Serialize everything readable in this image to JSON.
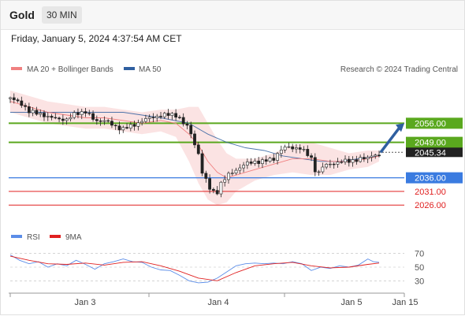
{
  "header": {
    "symbol": "Gold",
    "timeframe": "30 MIN"
  },
  "timestamp": "Friday, January 5, 2024 4:37:54 AM CET",
  "legend": {
    "ma20": {
      "label": "MA 20 + Bollinger Bands",
      "color": "#f08080"
    },
    "ma50": {
      "label": "MA 50",
      "color": "#2f5fa0"
    },
    "credit": "Research © 2024 Trading Central"
  },
  "rsi_legend": {
    "rsi": {
      "label": "RSI",
      "color": "#5b8de8"
    },
    "ma9": {
      "label": "9MA",
      "color": "#e02020"
    }
  },
  "chart_data": [
    {
      "type": "candlestick",
      "title": "Gold",
      "x_ticks": [
        "Jan 3",
        "Jan 4",
        "Jan 5",
        "Jan 15"
      ],
      "ylim": [
        2020,
        2072
      ],
      "last_price": 2045.34,
      "levels": [
        {
          "value": 2056.0,
          "label": "2056.00",
          "color": "#5aa81e",
          "kind": "resistance"
        },
        {
          "value": 2049.0,
          "label": "2049.00",
          "color": "#5aa81e",
          "kind": "resistance"
        },
        {
          "value": 2036.0,
          "label": "2036.00",
          "color": "#3a7be0",
          "kind": "pivot"
        },
        {
          "value": 2031.0,
          "label": "2031.00",
          "color": "#e02020",
          "kind": "support"
        },
        {
          "value": 2026.0,
          "label": "2026.00",
          "color": "#e02020",
          "kind": "support"
        }
      ],
      "last_price_label": "2045.34",
      "forecast": {
        "direction": "up",
        "target": 2056.0
      },
      "price_path": [
        [
          0,
          2065
        ],
        [
          5,
          2064
        ],
        [
          10,
          2060
        ],
        [
          15,
          2060
        ],
        [
          20,
          2058
        ],
        [
          25,
          2058
        ],
        [
          30,
          2057
        ],
        [
          35,
          2060
        ],
        [
          40,
          2060
        ],
        [
          45,
          2057
        ],
        [
          50,
          2057
        ],
        [
          55,
          2055
        ],
        [
          60,
          2054
        ],
        [
          65,
          2055
        ],
        [
          70,
          2057
        ],
        [
          75,
          2058
        ],
        [
          80,
          2059
        ],
        [
          85,
          2059
        ],
        [
          88,
          2059
        ],
        [
          90,
          2058
        ],
        [
          92,
          2056
        ],
        [
          95,
          2054
        ],
        [
          97,
          2050
        ],
        [
          100,
          2045
        ],
        [
          102,
          2038
        ],
        [
          104,
          2035
        ],
        [
          106,
          2032
        ],
        [
          108,
          2031
        ],
        [
          110,
          2031
        ],
        [
          112,
          2034
        ],
        [
          116,
          2037
        ],
        [
          120,
          2039
        ],
        [
          125,
          2041
        ],
        [
          130,
          2042
        ],
        [
          135,
          2042
        ],
        [
          140,
          2043
        ],
        [
          143,
          2046
        ],
        [
          146,
          2047
        ],
        [
          150,
          2047
        ],
        [
          154,
          2047
        ],
        [
          157,
          2045
        ],
        [
          160,
          2043
        ],
        [
          163,
          2037
        ],
        [
          166,
          2040
        ],
        [
          170,
          2041
        ],
        [
          175,
          2042
        ],
        [
          180,
          2042
        ],
        [
          185,
          2043
        ],
        [
          190,
          2043
        ],
        [
          193,
          2045
        ],
        [
          196,
          2044
        ]
      ],
      "ma20_path": [
        [
          0,
          2064
        ],
        [
          10,
          2062
        ],
        [
          20,
          2060
        ],
        [
          30,
          2059
        ],
        [
          40,
          2058
        ],
        [
          50,
          2058
        ],
        [
          60,
          2057
        ],
        [
          70,
          2056
        ],
        [
          80,
          2057
        ],
        [
          88,
          2056
        ],
        [
          95,
          2052
        ],
        [
          100,
          2048
        ],
        [
          105,
          2042
        ],
        [
          110,
          2038
        ],
        [
          115,
          2036
        ],
        [
          120,
          2037
        ],
        [
          130,
          2039
        ],
        [
          140,
          2041
        ],
        [
          150,
          2043
        ],
        [
          160,
          2043
        ],
        [
          170,
          2042
        ],
        [
          180,
          2042
        ],
        [
          190,
          2043
        ],
        [
          196,
          2044
        ]
      ],
      "ma50_path": [
        [
          0,
          2060
        ],
        [
          20,
          2060
        ],
        [
          40,
          2060
        ],
        [
          60,
          2060
        ],
        [
          80,
          2058
        ],
        [
          95,
          2056
        ],
        [
          105,
          2052
        ],
        [
          115,
          2049
        ],
        [
          125,
          2047
        ],
        [
          135,
          2046
        ],
        [
          145,
          2044
        ],
        [
          155,
          2043
        ],
        [
          165,
          2042
        ],
        [
          175,
          2042
        ],
        [
          185,
          2043
        ],
        [
          196,
          2044
        ]
      ],
      "bollinger_upper": [
        [
          0,
          2068
        ],
        [
          10,
          2066
        ],
        [
          20,
          2064
        ],
        [
          30,
          2063
        ],
        [
          40,
          2062
        ],
        [
          50,
          2062
        ],
        [
          60,
          2061
        ],
        [
          70,
          2060
        ],
        [
          80,
          2061
        ],
        [
          88,
          2061
        ],
        [
          95,
          2062
        ],
        [
          100,
          2062
        ],
        [
          105,
          2056
        ],
        [
          110,
          2050
        ],
        [
          115,
          2045
        ],
        [
          120,
          2043
        ],
        [
          130,
          2043
        ],
        [
          140,
          2045
        ],
        [
          150,
          2048
        ],
        [
          160,
          2049
        ],
        [
          170,
          2047
        ],
        [
          180,
          2045
        ],
        [
          190,
          2046
        ],
        [
          196,
          2046
        ]
      ],
      "bollinger_lower": [
        [
          0,
          2060
        ],
        [
          10,
          2058
        ],
        [
          20,
          2056
        ],
        [
          30,
          2055
        ],
        [
          40,
          2054
        ],
        [
          50,
          2054
        ],
        [
          60,
          2053
        ],
        [
          70,
          2052
        ],
        [
          80,
          2053
        ],
        [
          88,
          2051
        ],
        [
          95,
          2042
        ],
        [
          100,
          2034
        ],
        [
          105,
          2028
        ],
        [
          110,
          2026
        ],
        [
          115,
          2027
        ],
        [
          120,
          2031
        ],
        [
          130,
          2035
        ],
        [
          140,
          2037
        ],
        [
          150,
          2038
        ],
        [
          160,
          2037
        ],
        [
          170,
          2037
        ],
        [
          180,
          2039
        ],
        [
          190,
          2040
        ],
        [
          196,
          2042
        ]
      ]
    },
    {
      "type": "line",
      "title": "RSI",
      "y_ticks": [
        "70",
        "50",
        "30"
      ],
      "ylim": [
        20,
        80
      ],
      "rsi": [
        [
          0,
          68
        ],
        [
          5,
          60
        ],
        [
          10,
          55
        ],
        [
          15,
          58
        ],
        [
          20,
          50
        ],
        [
          25,
          55
        ],
        [
          30,
          52
        ],
        [
          35,
          60
        ],
        [
          40,
          54
        ],
        [
          45,
          47
        ],
        [
          50,
          55
        ],
        [
          55,
          58
        ],
        [
          60,
          62
        ],
        [
          65,
          58
        ],
        [
          70,
          57
        ],
        [
          75,
          50
        ],
        [
          80,
          46
        ],
        [
          85,
          45
        ],
        [
          90,
          38
        ],
        [
          95,
          30
        ],
        [
          100,
          27
        ],
        [
          105,
          28
        ],
        [
          110,
          34
        ],
        [
          115,
          43
        ],
        [
          120,
          52
        ],
        [
          125,
          55
        ],
        [
          130,
          56
        ],
        [
          135,
          55
        ],
        [
          140,
          56
        ],
        [
          145,
          55
        ],
        [
          150,
          58
        ],
        [
          155,
          55
        ],
        [
          160,
          45
        ],
        [
          165,
          50
        ],
        [
          170,
          48
        ],
        [
          175,
          52
        ],
        [
          180,
          50
        ],
        [
          185,
          53
        ],
        [
          190,
          62
        ],
        [
          193,
          58
        ],
        [
          196,
          57
        ]
      ],
      "ma9": [
        [
          0,
          66
        ],
        [
          10,
          60
        ],
        [
          20,
          55
        ],
        [
          30,
          54
        ],
        [
          40,
          56
        ],
        [
          50,
          53
        ],
        [
          60,
          57
        ],
        [
          70,
          58
        ],
        [
          80,
          52
        ],
        [
          90,
          44
        ],
        [
          100,
          34
        ],
        [
          110,
          30
        ],
        [
          120,
          42
        ],
        [
          130,
          52
        ],
        [
          140,
          55
        ],
        [
          150,
          57
        ],
        [
          160,
          52
        ],
        [
          170,
          49
        ],
        [
          180,
          50
        ],
        [
          190,
          54
        ],
        [
          196,
          56
        ]
      ]
    }
  ]
}
